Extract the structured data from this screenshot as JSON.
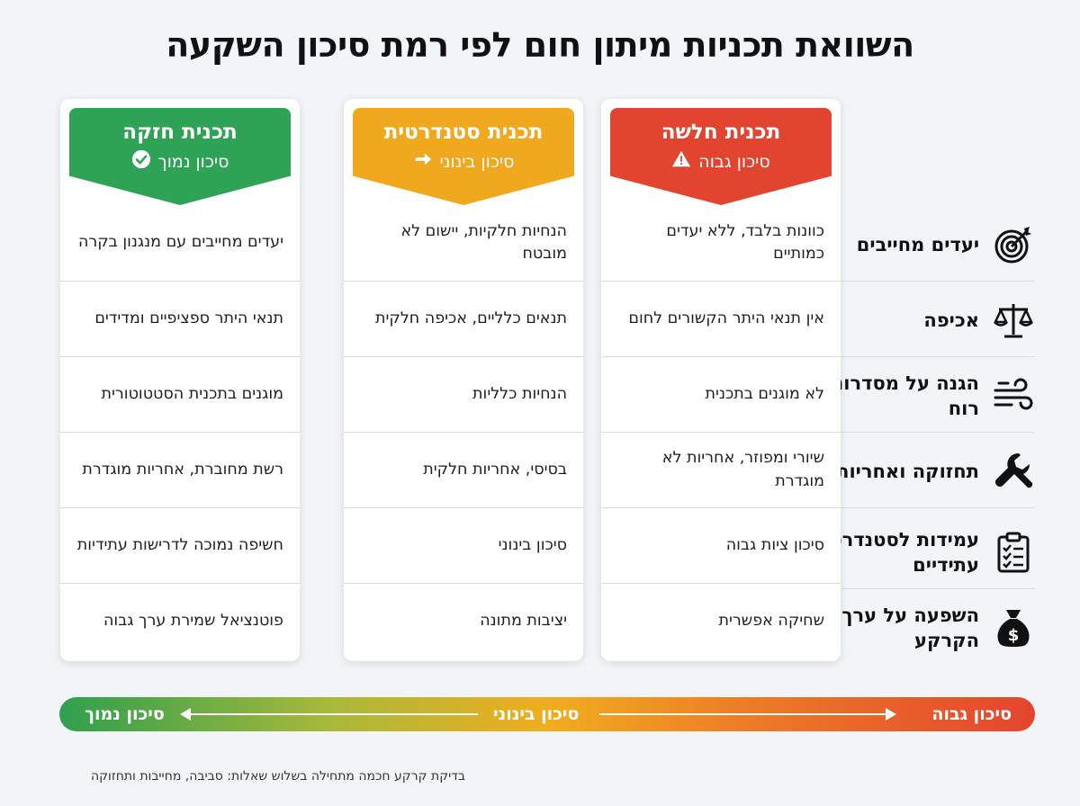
{
  "title": "השוואת תכניות מיתון חום לפי רמת סיכון השקעה",
  "colors": {
    "weak": "#e2452f",
    "standard": "#f0a81e",
    "strong": "#2ea356"
  },
  "rows": [
    {
      "label": "יעדים מחייבים",
      "icon": "target-icon"
    },
    {
      "label": "אכיפה",
      "icon": "scales-icon"
    },
    {
      "label": "הגנה על מסדרונות רוח",
      "icon": "wind-icon"
    },
    {
      "label": "תחזוקה ואחריות",
      "icon": "wrench-icon"
    },
    {
      "label": "עמידות לסטנדרטים עתידיים",
      "icon": "checklist-icon"
    },
    {
      "label": "השפעה על ערך הקרקע",
      "icon": "money-bag-icon"
    }
  ],
  "plans": [
    {
      "name": "תכנית חלשה",
      "risk": "סיכון גבוה",
      "risk_icon": "warning-icon",
      "cells": [
        "כוונות בלבד, ללא יעדים כמותיים",
        "אין תנאי היתר הקשורים לחום",
        "לא מוגנים בתכנית",
        "שיורי ומפוזר, אחריות לא מוגדרת",
        "סיכון ציות גבוה",
        "שחיקה אפשרית"
      ]
    },
    {
      "name": "תכנית סטנדרטית",
      "risk": "סיכון בינוני",
      "risk_icon": "arrow-right-icon",
      "cells": [
        "הנחיות חלקיות, יישום לא מובטח",
        "תנאים כלליים, אכיפה חלקית",
        "הנחיות כלליות",
        "בסיסי, אחריות חלקית",
        "סיכון בינוני",
        "יציבות מתונה"
      ]
    },
    {
      "name": "תכנית חזקה",
      "risk": "סיכון נמוך",
      "risk_icon": "check-circle-icon",
      "cells": [
        "יעדים מחייבים עם מנגנון בקרה",
        "תנאי היתר ספציפיים ומדידים",
        "מוגנים בתכנית הסטטוטורית",
        "רשת מחוברת, אחריות מוגדרת",
        "חשיפה נמוכה לדרישות עתידיות",
        "פוטנציאל שמירת ערך גבוה"
      ]
    }
  ],
  "risk_scale": {
    "high": "סיכון גבוה",
    "medium": "סיכון בינוני",
    "low": "סיכון נמוך"
  },
  "footnote": "בדיקת קרקע חכמה מתחילה בשלוש שאלות: סביבה, מחייבות ותחזוקה"
}
